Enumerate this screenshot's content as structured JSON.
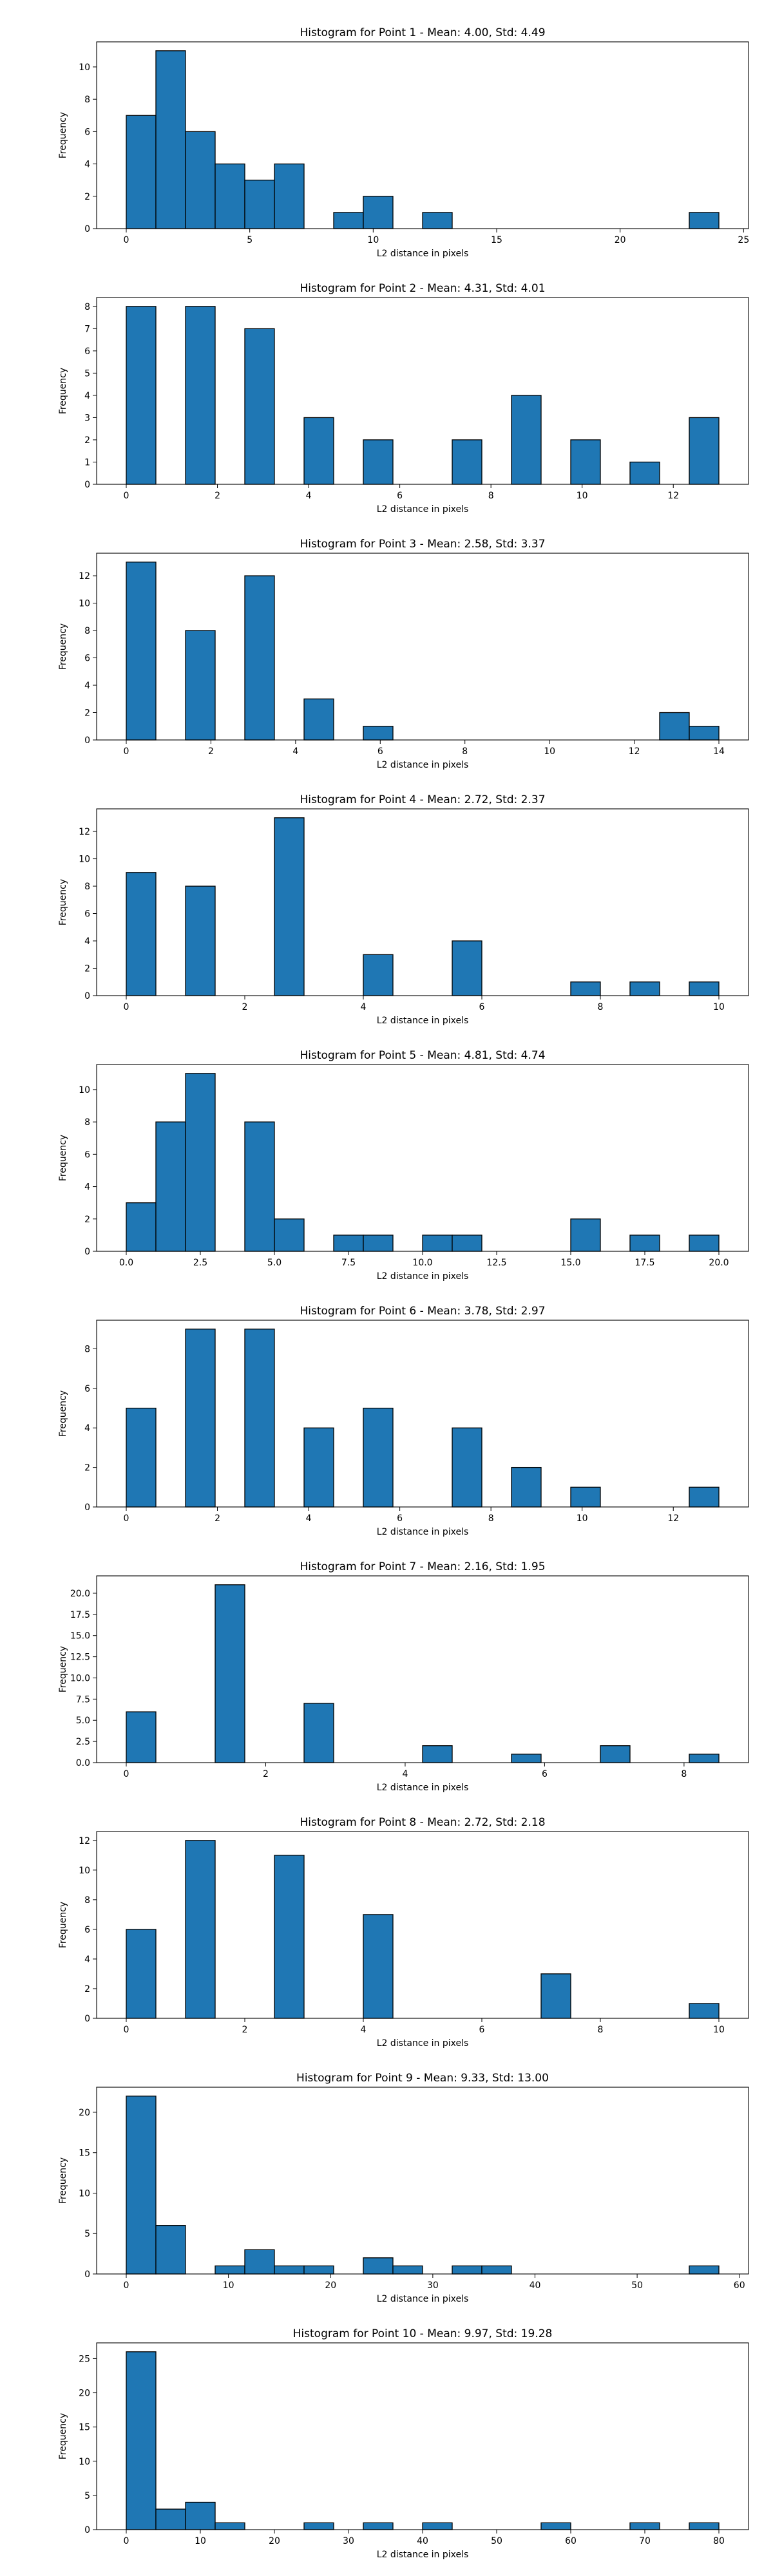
{
  "chart_data": [
    {
      "type": "bar",
      "title": "Histogram for Point 1 - Mean: 4.00, Std: 4.49",
      "xlabel": "L2 distance in pixels",
      "ylabel": "Frequency",
      "xlim": [
        -1.2,
        25.2
      ],
      "ylim": [
        0,
        11.55
      ],
      "xticks": [
        0,
        5,
        10,
        15,
        20,
        25
      ],
      "xtick_labels": [
        "0",
        "5",
        "10",
        "15",
        "20",
        "25"
      ],
      "yticks": [
        0,
        2,
        4,
        6,
        8,
        10
      ],
      "ytick_labels": [
        "0",
        "2",
        "4",
        "6",
        "8",
        "10"
      ],
      "bin_edges": [
        0.0,
        1.2,
        2.4,
        3.6,
        4.8,
        6.0,
        7.2,
        8.4,
        9.6,
        10.8,
        12.0,
        13.2,
        14.4,
        15.6,
        16.8,
        18.0,
        19.2,
        20.4,
        21.6,
        22.8,
        24.0
      ],
      "counts": [
        7,
        11,
        6,
        4,
        3,
        4,
        0,
        1,
        2,
        0,
        1,
        0,
        0,
        0,
        0,
        0,
        0,
        0,
        0,
        1
      ],
      "color": "#1f77b4",
      "edgecolor": "#000000",
      "grid": false,
      "legend": null
    },
    {
      "type": "bar",
      "title": "Histogram for Point 2 - Mean: 4.31, Std: 4.01",
      "xlabel": "L2 distance in pixels",
      "ylabel": "Frequency",
      "xlim": [
        -0.65,
        13.65
      ],
      "ylim": [
        0,
        8.4
      ],
      "xticks": [
        0,
        2,
        4,
        6,
        8,
        10,
        12
      ],
      "xtick_labels": [
        "0",
        "2",
        "4",
        "6",
        "8",
        "10",
        "12"
      ],
      "yticks": [
        0,
        1,
        2,
        3,
        4,
        5,
        6,
        7,
        8
      ],
      "ytick_labels": [
        "0",
        "1",
        "2",
        "3",
        "4",
        "5",
        "6",
        "7",
        "8"
      ],
      "bin_edges": [
        0.0,
        0.65,
        1.3,
        1.95,
        2.6,
        3.25,
        3.9,
        4.55,
        5.2,
        5.85,
        6.5,
        7.15,
        7.8,
        8.45,
        9.1,
        9.75,
        10.4,
        11.05,
        11.7,
        12.35,
        13.0
      ],
      "counts": [
        8,
        0,
        8,
        0,
        7,
        0,
        3,
        0,
        2,
        0,
        0,
        2,
        0,
        4,
        0,
        2,
        0,
        1,
        0,
        3
      ],
      "color": "#1f77b4",
      "edgecolor": "#000000",
      "grid": false,
      "legend": null
    },
    {
      "type": "bar",
      "title": "Histogram for Point 3 - Mean: 2.58, Std: 3.37",
      "xlabel": "L2 distance in pixels",
      "ylabel": "Frequency",
      "xlim": [
        -0.7,
        14.7
      ],
      "ylim": [
        0,
        13.65
      ],
      "xticks": [
        0,
        2,
        4,
        6,
        8,
        10,
        12,
        14
      ],
      "xtick_labels": [
        "0",
        "2",
        "4",
        "6",
        "8",
        "10",
        "12",
        "14"
      ],
      "yticks": [
        0,
        2,
        4,
        6,
        8,
        10,
        12
      ],
      "ytick_labels": [
        "0",
        "2",
        "4",
        "6",
        "8",
        "10",
        "12"
      ],
      "bin_edges": [
        0.0,
        0.7,
        1.4,
        2.1,
        2.8,
        3.5,
        4.2,
        4.9,
        5.6,
        6.3,
        7.0,
        7.7,
        8.4,
        9.1,
        9.8,
        10.5,
        11.2,
        11.9,
        12.6,
        13.3,
        14.0
      ],
      "counts": [
        13,
        0,
        8,
        0,
        12,
        0,
        3,
        0,
        1,
        0,
        0,
        0,
        0,
        0,
        0,
        0,
        0,
        0,
        2,
        1
      ],
      "color": "#1f77b4",
      "edgecolor": "#000000",
      "grid": false,
      "legend": null
    },
    {
      "type": "bar",
      "title": "Histogram for Point 4 - Mean: 2.72, Std: 2.37",
      "xlabel": "L2 distance in pixels",
      "ylabel": "Frequency",
      "xlim": [
        -0.5,
        10.5
      ],
      "ylim": [
        0,
        13.65
      ],
      "xticks": [
        0,
        2,
        4,
        6,
        8,
        10
      ],
      "xtick_labels": [
        "0",
        "2",
        "4",
        "6",
        "8",
        "10"
      ],
      "yticks": [
        0,
        2,
        4,
        6,
        8,
        10,
        12
      ],
      "ytick_labels": [
        "0",
        "2",
        "4",
        "6",
        "8",
        "10",
        "12"
      ],
      "bin_edges": [
        0.0,
        0.5,
        1.0,
        1.5,
        2.0,
        2.5,
        3.0,
        3.5,
        4.0,
        4.5,
        5.0,
        5.5,
        6.0,
        6.5,
        7.0,
        7.5,
        8.0,
        8.5,
        9.0,
        9.5,
        10.0
      ],
      "counts": [
        9,
        0,
        8,
        0,
        0,
        13,
        0,
        0,
        3,
        0,
        0,
        4,
        0,
        0,
        0,
        1,
        0,
        1,
        0,
        1
      ],
      "color": "#1f77b4",
      "edgecolor": "#000000",
      "grid": false,
      "legend": null
    },
    {
      "type": "bar",
      "title": "Histogram for Point 5 - Mean: 4.81, Std: 4.74",
      "xlabel": "L2 distance in pixels",
      "ylabel": "Frequency",
      "xlim": [
        -1.0,
        21.0
      ],
      "ylim": [
        0,
        11.55
      ],
      "xticks": [
        0,
        2.5,
        5,
        7.5,
        10,
        12.5,
        15,
        17.5,
        20
      ],
      "xtick_labels": [
        "0.0",
        "2.5",
        "5.0",
        "7.5",
        "10.0",
        "12.5",
        "15.0",
        "17.5",
        "20.0"
      ],
      "yticks": [
        0,
        2,
        4,
        6,
        8,
        10
      ],
      "ytick_labels": [
        "0",
        "2",
        "4",
        "6",
        "8",
        "10"
      ],
      "bin_edges": [
        0.0,
        1.0,
        2.0,
        3.0,
        4.0,
        5.0,
        6.0,
        7.0,
        8.0,
        9.0,
        10.0,
        11.0,
        12.0,
        13.0,
        14.0,
        15.0,
        16.0,
        17.0,
        18.0,
        19.0,
        20.0
      ],
      "counts": [
        3,
        8,
        11,
        0,
        8,
        2,
        0,
        1,
        1,
        0,
        1,
        1,
        0,
        0,
        0,
        2,
        0,
        1,
        0,
        1
      ],
      "color": "#1f77b4",
      "edgecolor": "#000000",
      "grid": false,
      "legend": null
    },
    {
      "type": "bar",
      "title": "Histogram for Point 6 - Mean: 3.78, Std: 2.97",
      "xlabel": "L2 distance in pixels",
      "ylabel": "Frequency",
      "xlim": [
        -0.65,
        13.65
      ],
      "ylim": [
        0,
        9.45
      ],
      "xticks": [
        0,
        2,
        4,
        6,
        8,
        10,
        12
      ],
      "xtick_labels": [
        "0",
        "2",
        "4",
        "6",
        "8",
        "10",
        "12"
      ],
      "yticks": [
        0,
        2,
        4,
        6,
        8
      ],
      "ytick_labels": [
        "0",
        "2",
        "4",
        "6",
        "8"
      ],
      "bin_edges": [
        0.0,
        0.65,
        1.3,
        1.95,
        2.6,
        3.25,
        3.9,
        4.55,
        5.2,
        5.85,
        6.5,
        7.15,
        7.8,
        8.45,
        9.1,
        9.75,
        10.4,
        11.05,
        11.7,
        12.35,
        13.0
      ],
      "counts": [
        5,
        0,
        9,
        0,
        9,
        0,
        4,
        0,
        5,
        0,
        0,
        4,
        0,
        2,
        0,
        1,
        0,
        0,
        0,
        1
      ],
      "color": "#1f77b4",
      "edgecolor": "#000000",
      "grid": false,
      "legend": null
    },
    {
      "type": "bar",
      "title": "Histogram for Point 7 - Mean: 2.16, Std: 1.95",
      "xlabel": "L2 distance in pixels",
      "ylabel": "Frequency",
      "xlim": [
        -0.425,
        8.925
      ],
      "ylim": [
        0,
        22.05
      ],
      "xticks": [
        0,
        2,
        4,
        6,
        8
      ],
      "xtick_labels": [
        "0",
        "2",
        "4",
        "6",
        "8"
      ],
      "yticks": [
        0,
        2.5,
        5,
        7.5,
        10,
        12.5,
        15,
        17.5,
        20
      ],
      "ytick_labels": [
        "0.0",
        "2.5",
        "5.0",
        "7.5",
        "10.0",
        "12.5",
        "15.0",
        "17.5",
        "20.0"
      ],
      "bin_edges": [
        0.0,
        0.425,
        0.85,
        1.275,
        1.7,
        2.125,
        2.55,
        2.975,
        3.4,
        3.825,
        4.25,
        4.675,
        5.1,
        5.525,
        5.95,
        6.375,
        6.8,
        7.225,
        7.65,
        8.075,
        8.5
      ],
      "counts": [
        6,
        0,
        0,
        21,
        0,
        0,
        7,
        0,
        0,
        0,
        2,
        0,
        0,
        1,
        0,
        0,
        2,
        0,
        0,
        1
      ],
      "color": "#1f77b4",
      "edgecolor": "#000000",
      "grid": false,
      "legend": null
    },
    {
      "type": "bar",
      "title": "Histogram for Point 8 - Mean: 2.72, Std: 2.18",
      "xlabel": "L2 distance in pixels",
      "ylabel": "Frequency",
      "xlim": [
        -0.5,
        10.5
      ],
      "ylim": [
        0,
        12.6
      ],
      "xticks": [
        0,
        2,
        4,
        6,
        8,
        10
      ],
      "xtick_labels": [
        "0",
        "2",
        "4",
        "6",
        "8",
        "10"
      ],
      "yticks": [
        0,
        2,
        4,
        6,
        8,
        10,
        12
      ],
      "ytick_labels": [
        "0",
        "2",
        "4",
        "6",
        "8",
        "10",
        "12"
      ],
      "bin_edges": [
        0.0,
        0.5,
        1.0,
        1.5,
        2.0,
        2.5,
        3.0,
        3.5,
        4.0,
        4.5,
        5.0,
        5.5,
        6.0,
        6.5,
        7.0,
        7.5,
        8.0,
        8.5,
        9.0,
        9.5,
        10.0
      ],
      "counts": [
        6,
        0,
        12,
        0,
        0,
        11,
        0,
        0,
        7,
        0,
        0,
        0,
        0,
        0,
        3,
        0,
        0,
        0,
        0,
        1
      ],
      "color": "#1f77b4",
      "edgecolor": "#000000",
      "grid": false,
      "legend": null
    },
    {
      "type": "bar",
      "title": "Histogram for Point 9 - Mean: 9.33, Std: 13.00",
      "xlabel": "L2 distance in pixels",
      "ylabel": "Frequency",
      "xlim": [
        -2.9,
        60.9
      ],
      "ylim": [
        0,
        23.1
      ],
      "xticks": [
        0,
        10,
        20,
        30,
        40,
        50,
        60
      ],
      "xtick_labels": [
        "0",
        "10",
        "20",
        "30",
        "40",
        "50",
        "60"
      ],
      "yticks": [
        0,
        5,
        10,
        15,
        20
      ],
      "ytick_labels": [
        "0",
        "5",
        "10",
        "15",
        "20"
      ],
      "bin_edges": [
        0.0,
        2.9,
        5.8,
        8.7,
        11.6,
        14.5,
        17.4,
        20.3,
        23.2,
        26.1,
        29.0,
        31.9,
        34.8,
        37.7,
        40.6,
        43.5,
        46.4,
        49.3,
        52.2,
        55.1,
        58.0
      ],
      "counts": [
        22,
        6,
        0,
        1,
        3,
        1,
        1,
        0,
        2,
        1,
        0,
        1,
        1,
        0,
        0,
        0,
        0,
        0,
        0,
        1
      ],
      "color": "#1f77b4",
      "edgecolor": "#000000",
      "grid": false,
      "legend": null
    },
    {
      "type": "bar",
      "title": "Histogram for Point 10 - Mean: 9.97, Std: 19.28",
      "xlabel": "L2 distance in pixels",
      "ylabel": "Frequency",
      "xlim": [
        -4.0,
        84.0
      ],
      "ylim": [
        0,
        27.3
      ],
      "xticks": [
        0,
        10,
        20,
        30,
        40,
        50,
        60,
        70,
        80
      ],
      "xtick_labels": [
        "0",
        "10",
        "20",
        "30",
        "40",
        "50",
        "60",
        "70",
        "80"
      ],
      "yticks": [
        0,
        5,
        10,
        15,
        20,
        25
      ],
      "ytick_labels": [
        "0",
        "5",
        "10",
        "15",
        "20",
        "25"
      ],
      "bin_edges": [
        0,
        4,
        8,
        12,
        16,
        20,
        24,
        28,
        32,
        36,
        40,
        44,
        48,
        52,
        56,
        60,
        64,
        68,
        72,
        76,
        80
      ],
      "counts": [
        26,
        3,
        4,
        1,
        0,
        0,
        1,
        0,
        1,
        0,
        1,
        0,
        0,
        0,
        1,
        0,
        0,
        1,
        0,
        1
      ],
      "color": "#1f77b4",
      "edgecolor": "#000000",
      "grid": false,
      "legend": null
    }
  ]
}
